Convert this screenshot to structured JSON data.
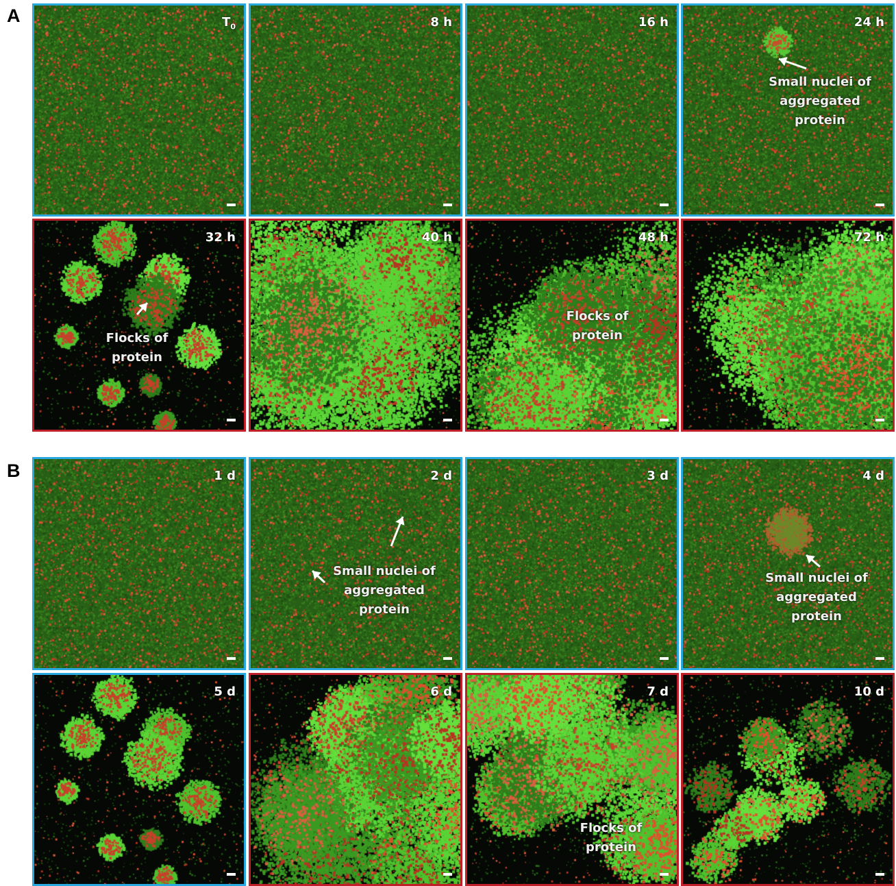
{
  "figure": {
    "sections": [
      {
        "label": "A"
      },
      {
        "label": "B"
      }
    ],
    "panels": [
      {
        "section": "A",
        "label": "T",
        "sub": "0",
        "frame": "blue",
        "style": "dispersed",
        "annotation": ""
      },
      {
        "section": "A",
        "label": "8 h",
        "frame": "blue",
        "style": "dispersed",
        "annotation": ""
      },
      {
        "section": "A",
        "label": "16 h",
        "frame": "blue",
        "style": "dispersed",
        "annotation": ""
      },
      {
        "section": "A",
        "label": "24 h",
        "frame": "blue",
        "style": "nuclei",
        "annotation": "Small nuclei of aggregated protein"
      },
      {
        "section": "A",
        "label": "32 h",
        "frame": "red",
        "style": "small-flocks",
        "annotation": "Flocks of protein"
      },
      {
        "section": "A",
        "label": "40 h",
        "frame": "red",
        "style": "large-flock",
        "annotation": ""
      },
      {
        "section": "A",
        "label": "48 h",
        "frame": "red",
        "style": "large-flock",
        "annotation": "Flocks of protein"
      },
      {
        "section": "A",
        "label": "72 h",
        "frame": "red",
        "style": "large-flock",
        "annotation": ""
      },
      {
        "section": "B",
        "label": "1 d",
        "frame": "blue",
        "style": "dispersed",
        "annotation": ""
      },
      {
        "section": "B",
        "label": "2 d",
        "frame": "blue",
        "style": "dispersed",
        "annotation": "Small nuclei of aggregated protein"
      },
      {
        "section": "B",
        "label": "3 d",
        "frame": "blue",
        "style": "dispersed",
        "annotation": ""
      },
      {
        "section": "B",
        "label": "4 d",
        "frame": "blue",
        "style": "nuclei-red",
        "annotation": "Small nuclei of aggregated protein"
      },
      {
        "section": "B",
        "label": "5 d",
        "frame": "blue",
        "style": "small-flocks",
        "annotation": ""
      },
      {
        "section": "B",
        "label": "6 d",
        "frame": "red",
        "style": "network",
        "annotation": ""
      },
      {
        "section": "B",
        "label": "7 d",
        "frame": "red",
        "style": "network",
        "annotation": "Flocks of protein"
      },
      {
        "section": "B",
        "label": "10 d",
        "frame": "red",
        "style": "sparse-network",
        "annotation": ""
      }
    ],
    "annotation_lines": {
      "p3": [
        "Small nuclei of",
        "aggregated",
        "protein"
      ],
      "p4": [
        "Flocks of",
        "protein"
      ],
      "p6": [
        "Flocks of",
        "protein"
      ],
      "p9": [
        "Small nuclei of",
        "aggregated",
        "protein"
      ],
      "p11": [
        "Small nuclei of",
        "aggregated",
        "protein"
      ],
      "p14": [
        "Flocks of",
        "protein"
      ]
    },
    "colors": {
      "blue_frame": "#29a8df",
      "red_frame": "#c0202a",
      "protein_green": "#38d02a",
      "particle_red": "#d8402a",
      "dark_background": "#050805"
    }
  }
}
